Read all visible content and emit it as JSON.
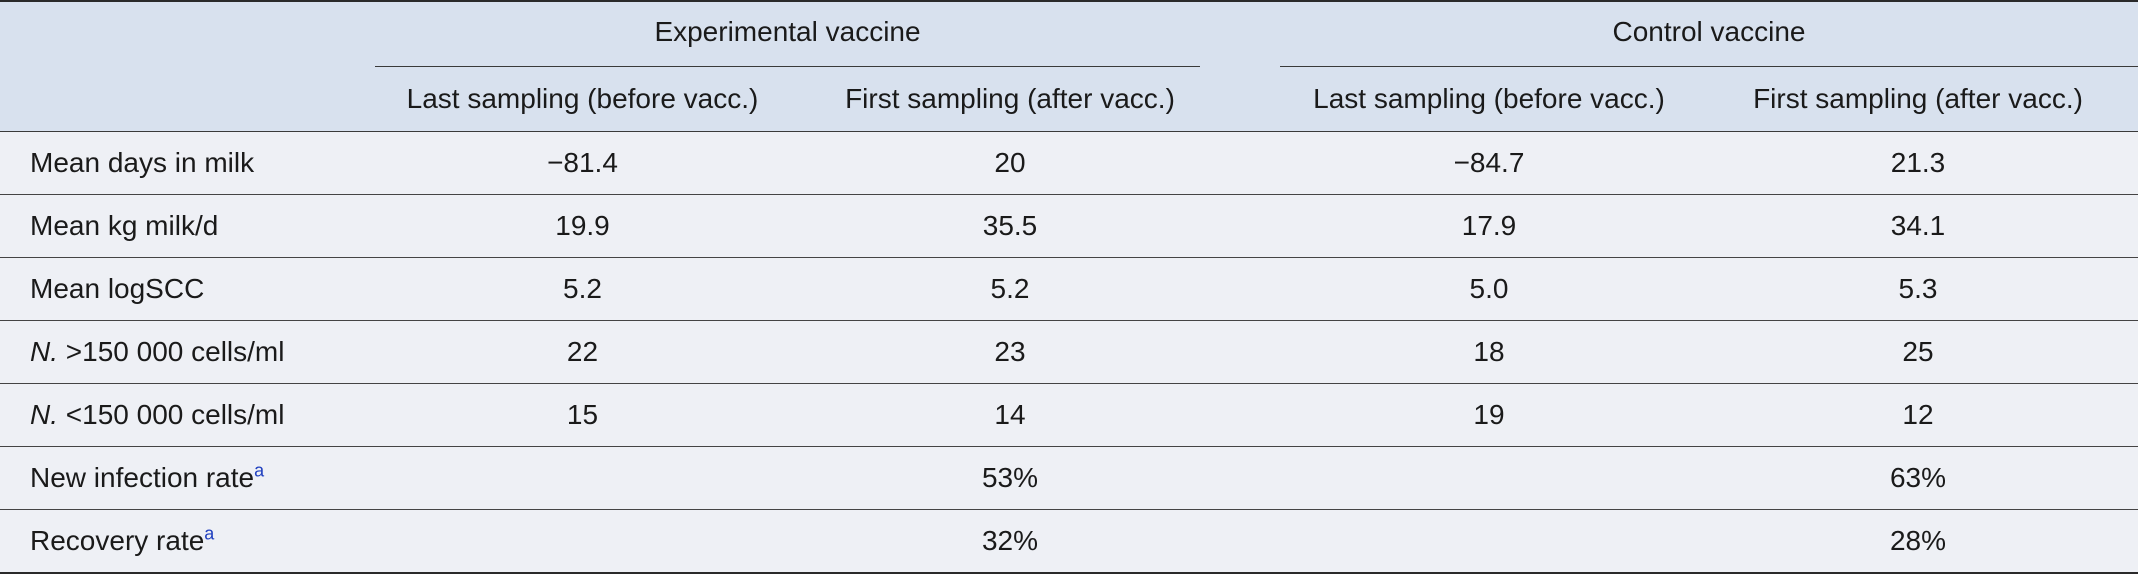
{
  "table": {
    "groups": {
      "experimental": "Experimental vaccine",
      "control": "Control vaccine"
    },
    "subheaders": {
      "exp_last": "Last sampling (before vacc.)",
      "exp_first": "First sampling (after vacc.)",
      "ctl_last": "Last sampling (before vacc.)",
      "ctl_first": "First sampling (after vacc.)"
    },
    "rows": [
      {
        "label": "Mean days in milk",
        "exp_last": "−81.4",
        "exp_first": "20",
        "ctl_last": "−84.7",
        "ctl_first": "21.3"
      },
      {
        "label": "Mean kg milk/d",
        "exp_last": "19.9",
        "exp_first": "35.5",
        "ctl_last": "17.9",
        "ctl_first": "34.1"
      },
      {
        "label": "Mean logSCC",
        "exp_last": "5.2",
        "exp_first": "5.2",
        "ctl_last": "5.0",
        "ctl_first": "5.3"
      },
      {
        "label_prefix": "N.",
        "label_rest": " >150 000 cells/ml",
        "exp_last": "22",
        "exp_first": "23",
        "ctl_last": "18",
        "ctl_first": "25"
      },
      {
        "label_prefix": "N.",
        "label_rest": " <150 000 cells/ml",
        "exp_last": "15",
        "exp_first": "14",
        "ctl_last": "19",
        "ctl_first": "12"
      },
      {
        "label": "New infection rate",
        "footnote": "a",
        "exp_last": "",
        "exp_first": "53%",
        "ctl_last": "",
        "ctl_first": "63%"
      },
      {
        "label": "Recovery rate",
        "footnote": "a",
        "exp_last": "",
        "exp_first": "32%",
        "ctl_last": "",
        "ctl_first": "28%"
      }
    ]
  }
}
